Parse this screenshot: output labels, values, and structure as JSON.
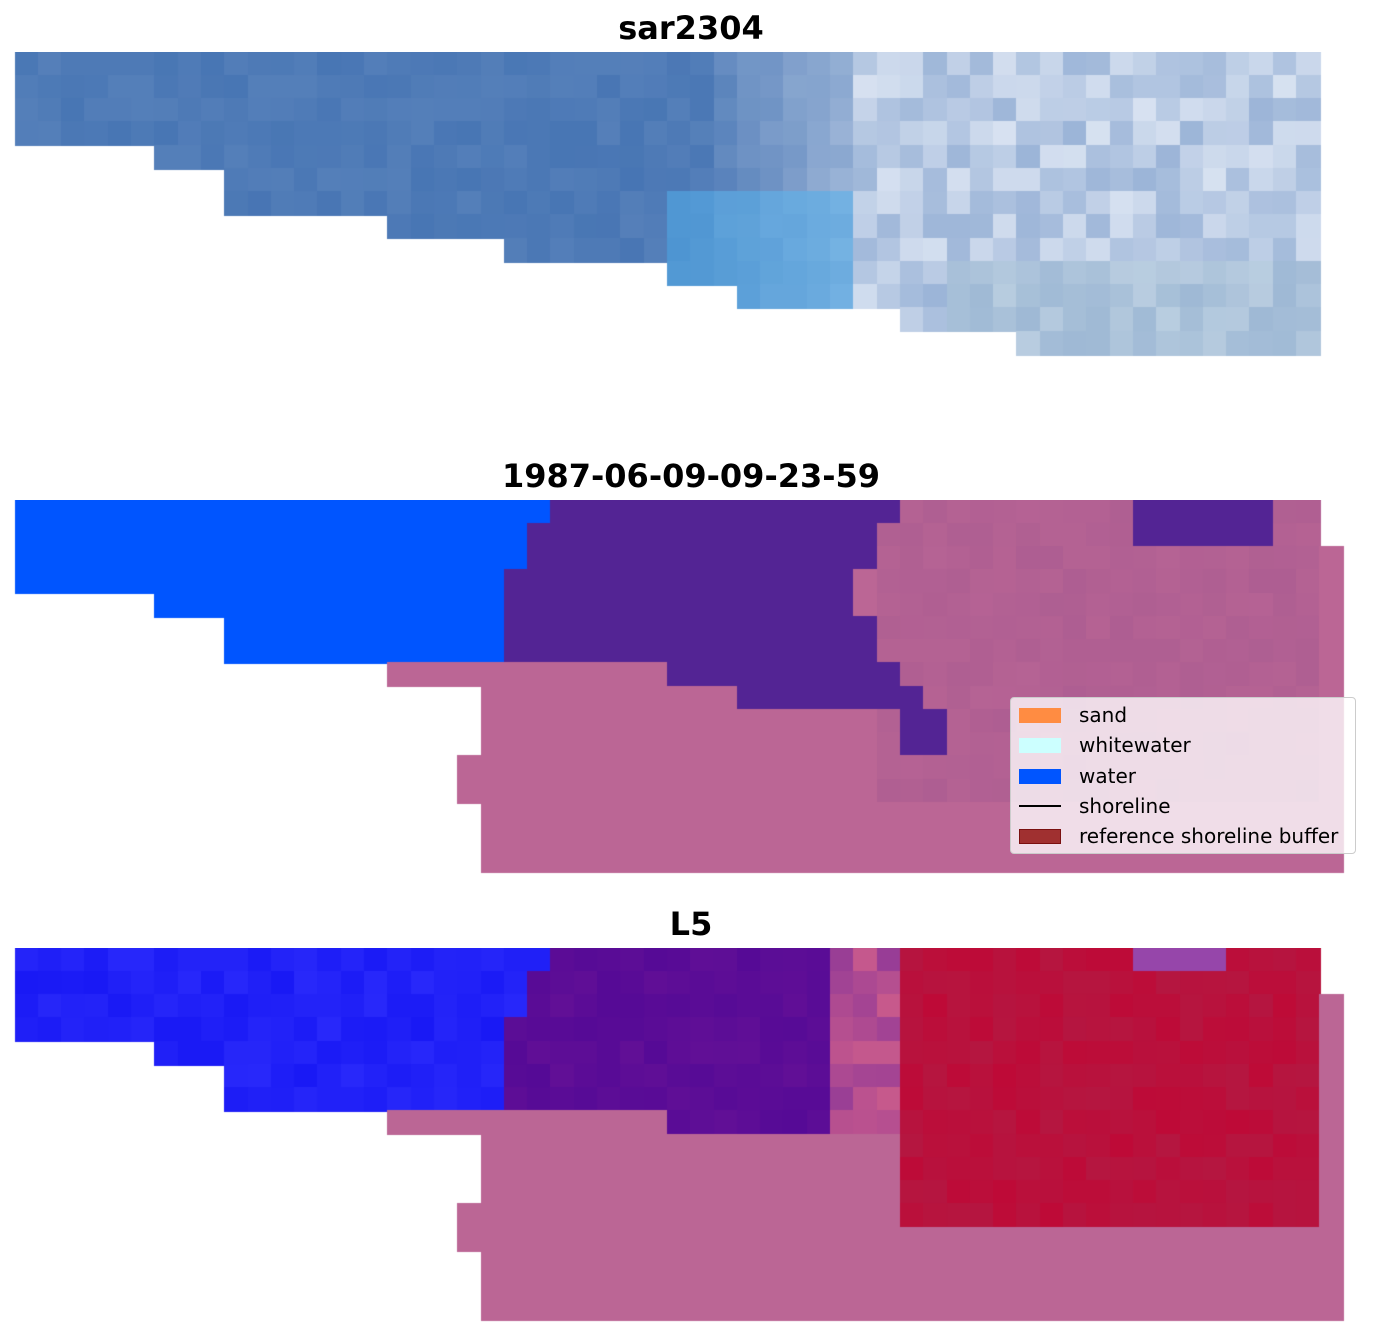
{
  "panels": [
    {
      "title": "sar2304"
    },
    {
      "title": "1987-06-09-09-23-59"
    },
    {
      "title": "L5"
    }
  ],
  "legend": {
    "items": [
      {
        "label": "sand",
        "color": "#ff8c42",
        "shape": "patch"
      },
      {
        "label": "whitewater",
        "color": "#ccffff",
        "shape": "patch"
      },
      {
        "label": "water",
        "color": "#0055ff",
        "shape": "patch"
      },
      {
        "label": "shoreline",
        "color": "#000000",
        "shape": "line"
      },
      {
        "label": "reference shoreline buffer",
        "color": "#a03030",
        "edge": "#7a1010",
        "shape": "patch"
      }
    ]
  },
  "colors": {
    "water_class": "#0055ff",
    "buffer_overlay": "#bb6695",
    "masked_purple": "#532494",
    "sar_dark": "#3f6fb0",
    "sar_light": "#e8eef8"
  }
}
